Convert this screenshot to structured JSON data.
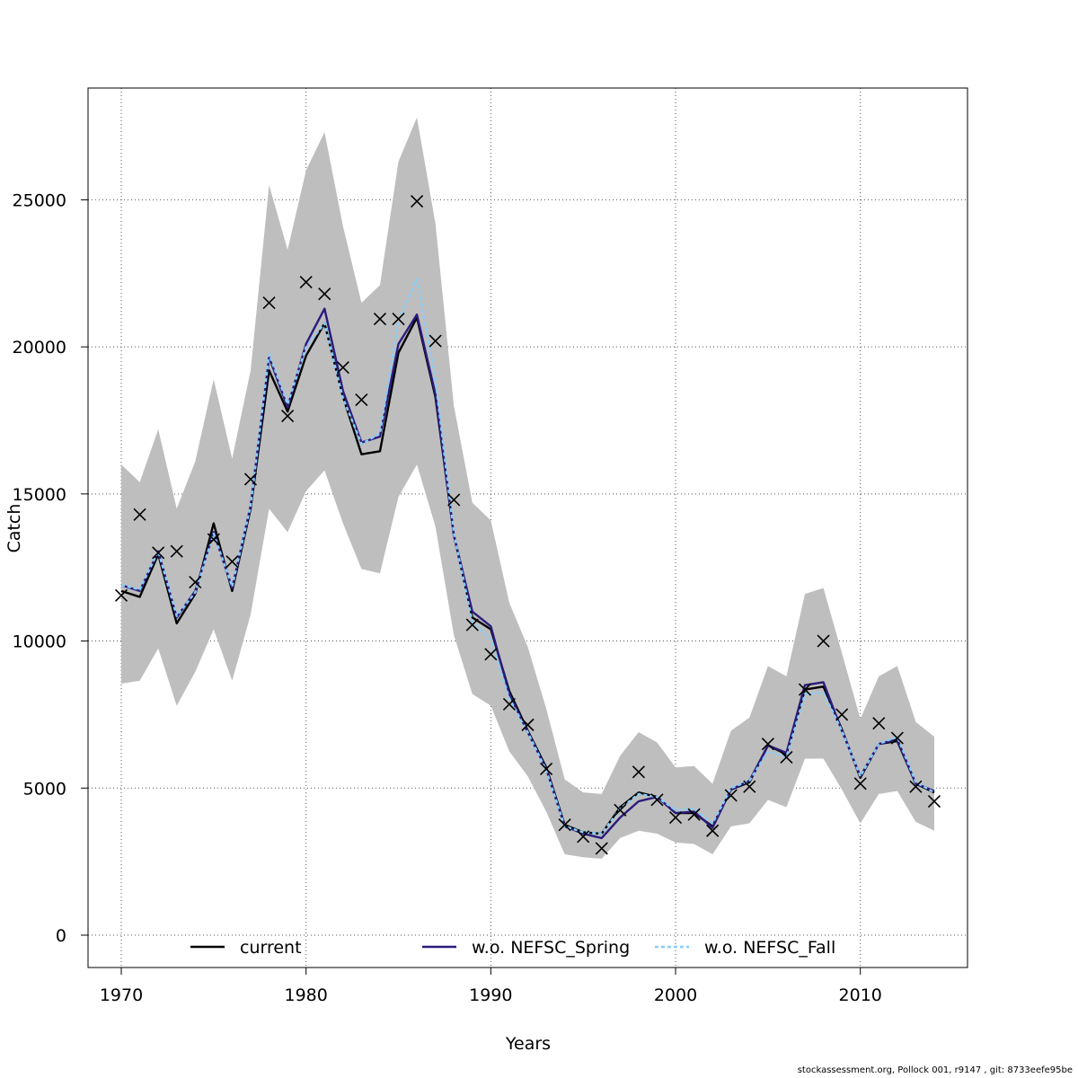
{
  "chart_data": {
    "type": "line",
    "xlabel": "Years",
    "ylabel": "Catch",
    "xlim": [
      1968.2,
      2015.8
    ],
    "ylim": [
      -1100,
      28800
    ],
    "x_ticks": [
      "1970",
      "1980",
      "1990",
      "2000",
      "2010"
    ],
    "y_ticks": [
      "0",
      "5000",
      "10000",
      "15000",
      "20000",
      "25000"
    ],
    "grid": true,
    "legend_position": "bottom",
    "x": [
      1970,
      1971,
      1972,
      1973,
      1974,
      1975,
      1976,
      1977,
      1978,
      1979,
      1980,
      1981,
      1982,
      1983,
      1984,
      1985,
      1986,
      1987,
      1988,
      1989,
      1990,
      1991,
      1992,
      1993,
      1994,
      1995,
      1996,
      1997,
      1998,
      1999,
      2000,
      2001,
      2002,
      2003,
      2004,
      2005,
      2006,
      2007,
      2008,
      2009,
      2010,
      2011,
      2012,
      2013,
      2014
    ],
    "band": {
      "upper": [
        16000,
        15400,
        17200,
        14500,
        16100,
        18900,
        16200,
        19200,
        25500,
        23300,
        26000,
        27300,
        24100,
        21500,
        22100,
        26300,
        27800,
        24200,
        18000,
        14700,
        14100,
        11300,
        9800,
        7700,
        5300,
        4850,
        4800,
        6100,
        6900,
        6550,
        5700,
        5750,
        5150,
        6950,
        7400,
        9150,
        8800,
        11600,
        11800,
        9600,
        7350,
        8800,
        9150,
        7250,
        6750
      ],
      "lower": [
        8550,
        8650,
        9750,
        7800,
        8950,
        10400,
        8650,
        10900,
        14500,
        13700,
        15100,
        15800,
        14000,
        12450,
        12300,
        14900,
        16000,
        13900,
        10200,
        8200,
        7800,
        6250,
        5400,
        4200,
        2750,
        2650,
        2600,
        3300,
        3550,
        3450,
        3150,
        3100,
        2750,
        3700,
        3800,
        4600,
        4350,
        6000,
        6000,
        4950,
        3800,
        4800,
        4900,
        3850,
        3550
      ],
      "color": "#bebebe"
    },
    "series": [
      {
        "name": "current",
        "color": "#000000",
        "dash": "",
        "values": [
          11700,
          11500,
          12950,
          10600,
          11600,
          14000,
          11700,
          14500,
          19200,
          17800,
          19700,
          20800,
          18300,
          16350,
          16450,
          19800,
          21000,
          18300,
          13600,
          10800,
          10400,
          8300,
          6950,
          5700,
          3750,
          3500,
          3450,
          4350,
          4850,
          4700,
          4150,
          4150,
          3700,
          4950,
          5200,
          6450,
          6150,
          8350,
          8450,
          7000,
          5350,
          6500,
          6600,
          5150,
          4850
        ]
      },
      {
        "name": "w.o. NEFSC_Spring",
        "color": "#2b1b7d",
        "dash": "",
        "values": [
          11900,
          11700,
          13050,
          10800,
          11700,
          13700,
          11800,
          14600,
          19650,
          17950,
          20100,
          21300,
          18500,
          16750,
          16950,
          20100,
          21100,
          18400,
          13600,
          11000,
          10500,
          8200,
          6900,
          5650,
          3700,
          3450,
          3300,
          4000,
          4550,
          4700,
          4150,
          4200,
          3650,
          4950,
          5250,
          6450,
          6200,
          8500,
          8600,
          6950,
          5400,
          6500,
          6650,
          5150,
          4900
        ]
      },
      {
        "name": "w.o. NEFSC_Fall",
        "color": "#87cefa",
        "dash": "4,3",
        "values": [
          11900,
          11750,
          13050,
          10850,
          11650,
          13650,
          11850,
          14600,
          19750,
          18050,
          20000,
          20800,
          18250,
          16700,
          17050,
          20900,
          22300,
          18900,
          13650,
          10650,
          10050,
          8050,
          6900,
          5600,
          3700,
          3500,
          3450,
          4300,
          4800,
          4700,
          4250,
          4300,
          3800,
          5000,
          5250,
          6250,
          6050,
          8200,
          8250,
          6950,
          5400,
          6500,
          6750,
          5200,
          4850
        ]
      }
    ],
    "observed": {
      "marker": "x",
      "values": [
        11550,
        14300,
        13000,
        13050,
        12000,
        13450,
        12700,
        15500,
        21500,
        17650,
        22200,
        21800,
        19300,
        18200,
        20950,
        20950,
        24950,
        20200,
        14800,
        10550,
        9550,
        7850,
        7150,
        5650,
        3750,
        3350,
        2950,
        4250,
        5550,
        4600,
        4000,
        4100,
        3550,
        4750,
        5050,
        6500,
        6050,
        8350,
        10000,
        7500,
        5150,
        7200,
        6700,
        5050,
        4550
      ]
    }
  },
  "footer": "stockassessment.org, Pollock  001, r9147 , git: 8733eefe95be"
}
